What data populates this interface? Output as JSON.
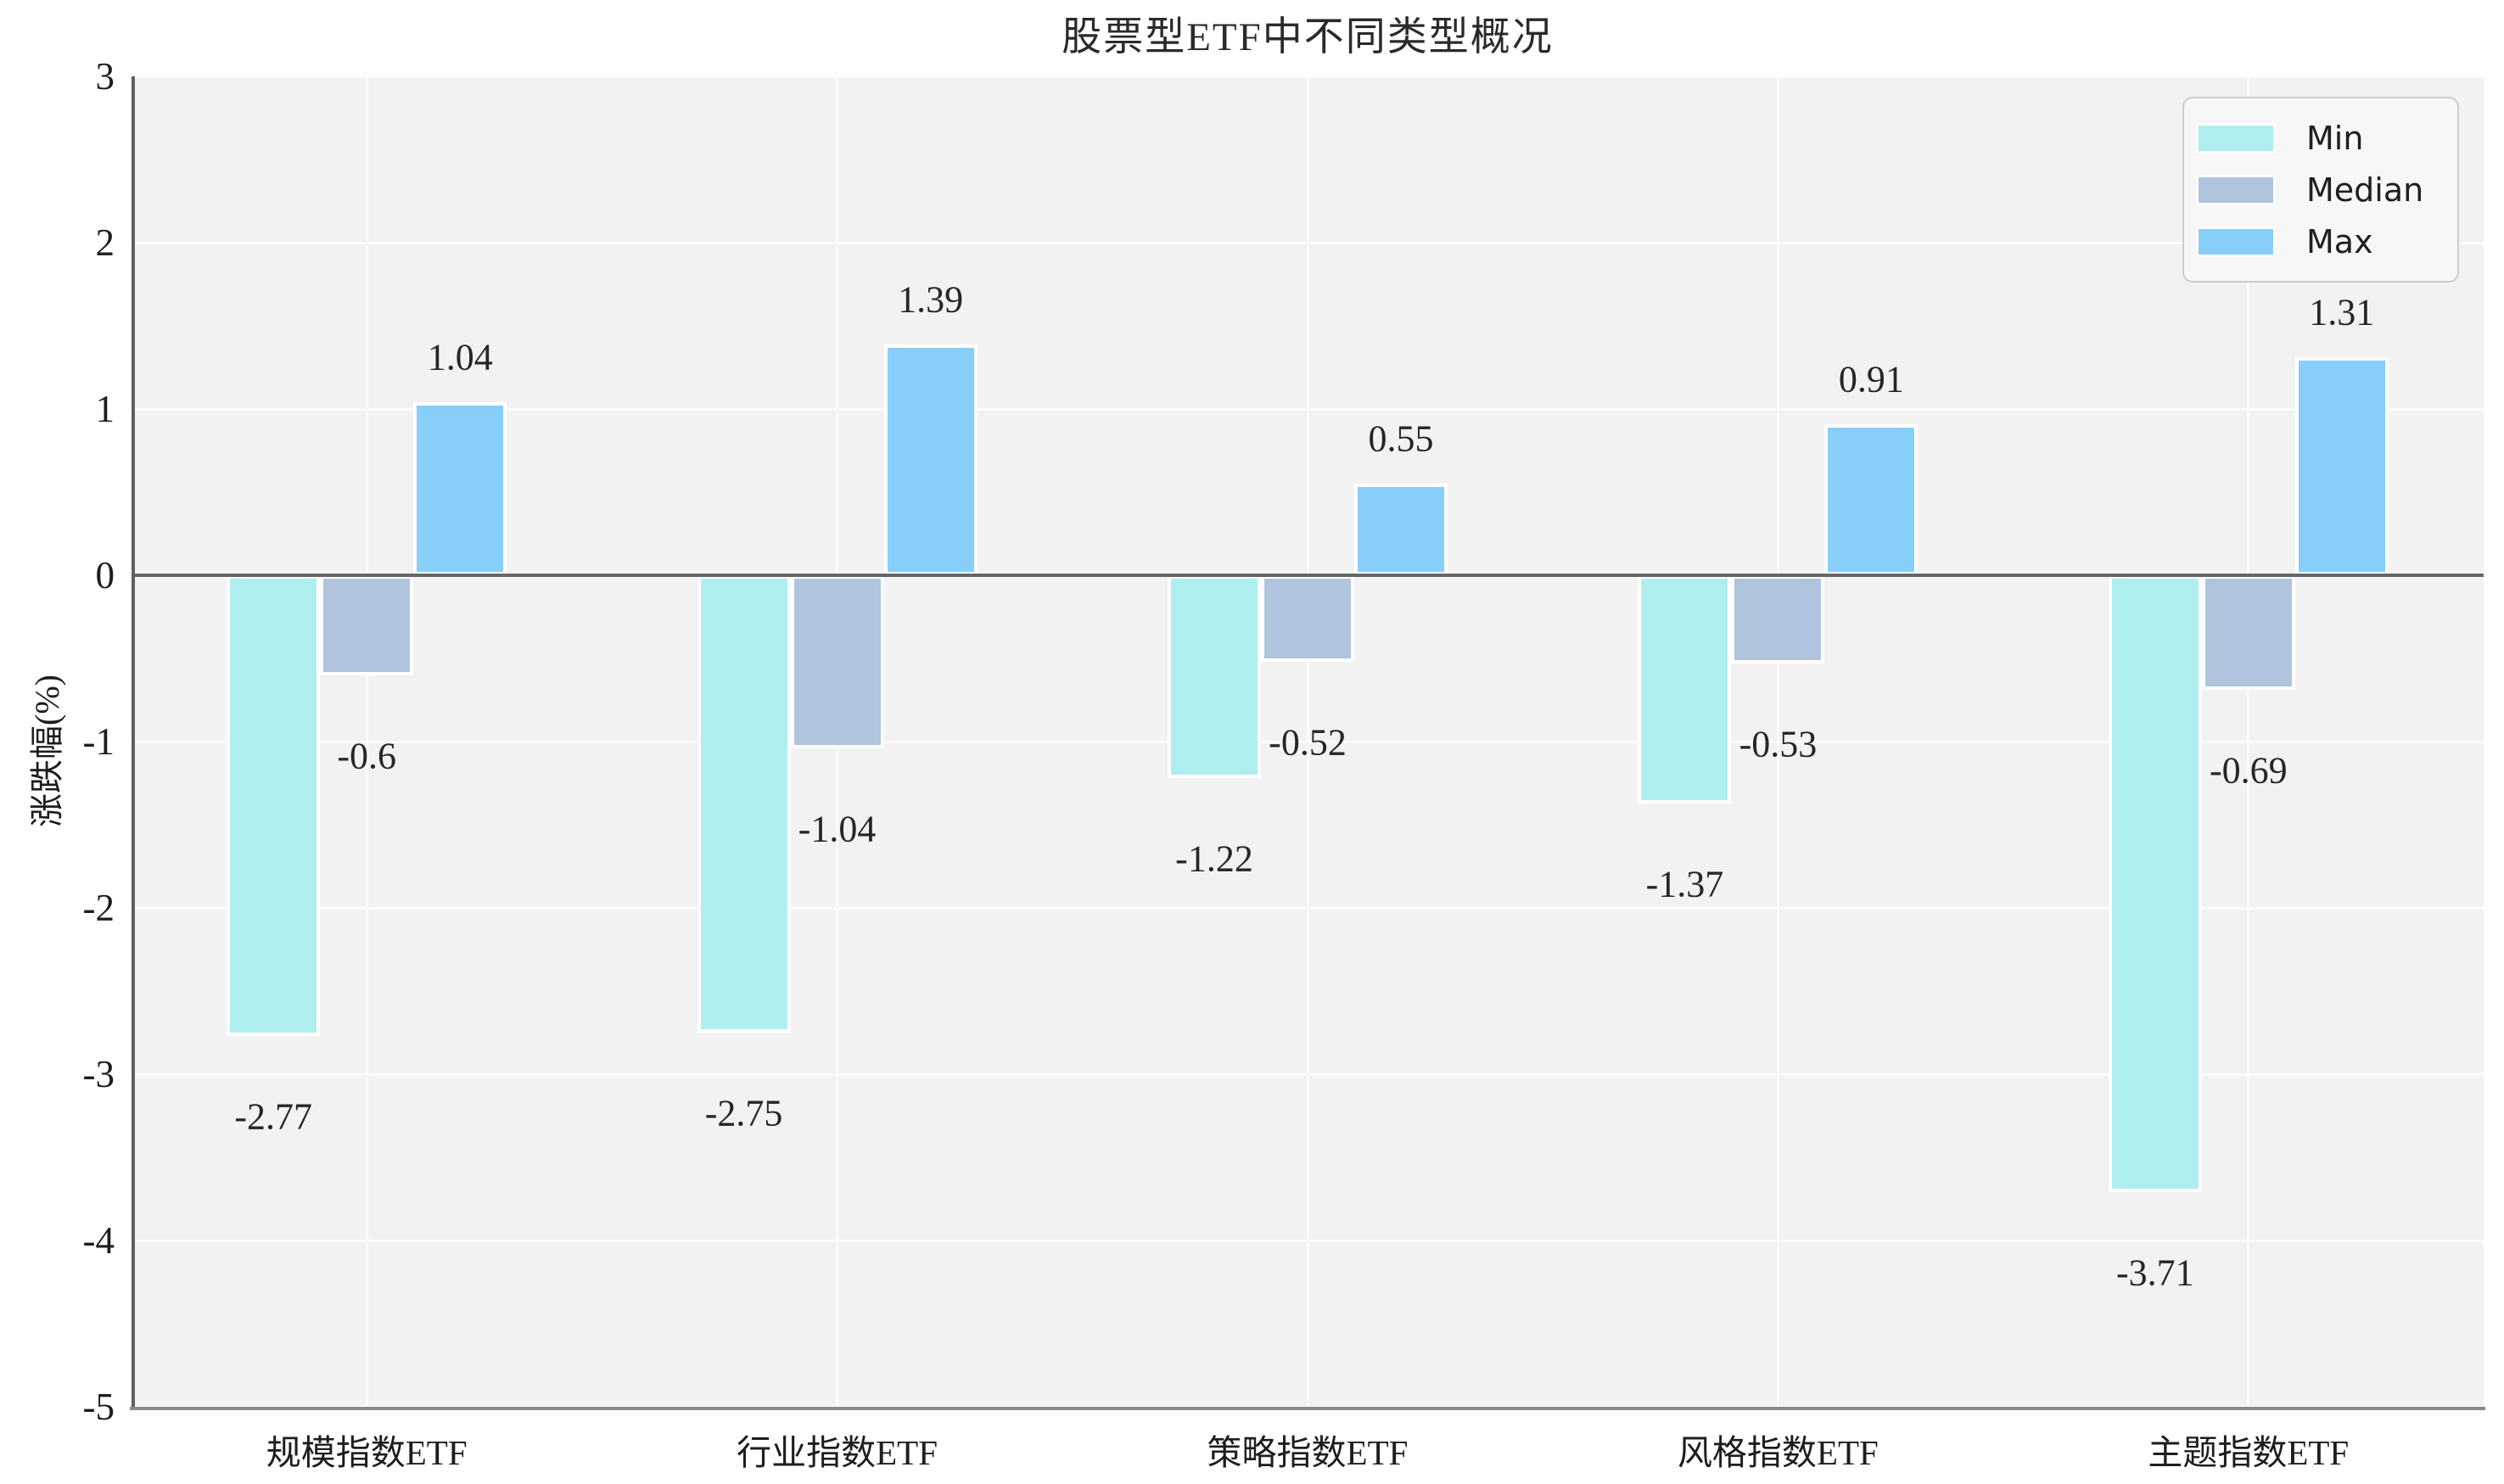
{
  "chart_data": {
    "type": "bar",
    "title": "股票型ETF中不同类型概况",
    "xlabel": "",
    "ylabel": "涨跌幅(%)",
    "categories": [
      "规模指数ETF",
      "行业指数ETF",
      "策略指数ETF",
      "风格指数ETF",
      "主题指数ETF"
    ],
    "series": [
      {
        "name": "Min",
        "color": "#AFEEEE",
        "values": [
          -2.77,
          -2.75,
          -1.22,
          -1.37,
          -3.71
        ]
      },
      {
        "name": "Median",
        "color": "#B0C4DE",
        "values": [
          -0.6,
          -1.04,
          -0.52,
          -0.53,
          -0.69
        ]
      },
      {
        "name": "Max",
        "color": "#87CEFA",
        "values": [
          1.04,
          1.39,
          0.55,
          0.91,
          1.31
        ]
      }
    ],
    "yticks": [
      3,
      2,
      1,
      0,
      -1,
      -2,
      -3,
      -4,
      -5
    ],
    "ylim": [
      -5,
      3
    ],
    "grid": true,
    "legend_position": "upper right",
    "zero_line": true
  },
  "style": {
    "plot_background": "#f2f2f2",
    "grid_color": "#fbfbfb",
    "zero_line_color": "#666666",
    "bar_edge_color": "#ffffff",
    "text_color": "#1d1d1d"
  }
}
